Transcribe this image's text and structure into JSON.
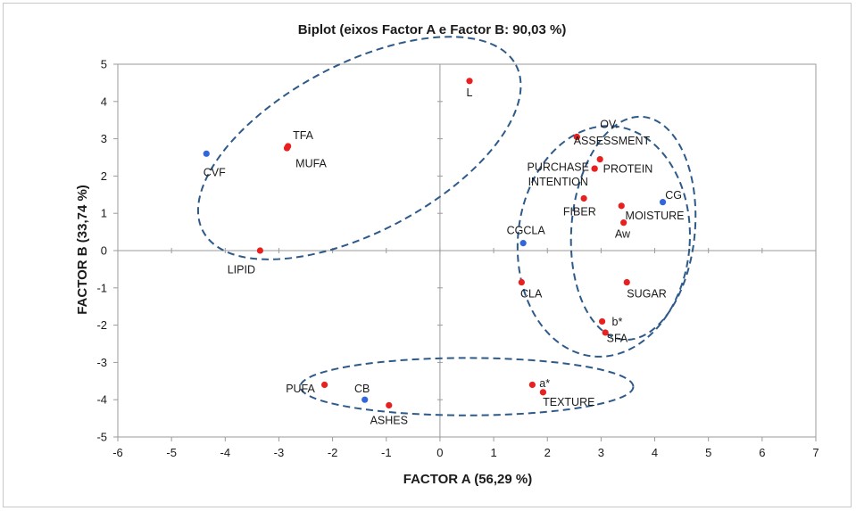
{
  "chart_data": {
    "type": "scatter",
    "title": "Biplot (eixos Factor A e Factor B: 90,03 %)",
    "xlabel": "FACTOR A (56,29 %)",
    "ylabel": "FACTOR B (33,74 %)",
    "xlim": [
      -6,
      7
    ],
    "ylim": [
      -5,
      5
    ],
    "xticks": [
      "-6",
      "-5",
      "-4",
      "-3",
      "-2",
      "-1",
      "0",
      "1",
      "2",
      "3",
      "4",
      "5",
      "6",
      "7"
    ],
    "yticks": [
      "5",
      "4",
      "3",
      "2",
      "1",
      "0",
      "-1",
      "-2",
      "-3",
      "-4",
      "-5"
    ],
    "grid": false,
    "colors": {
      "variable": "#e8201f",
      "observation": "#3366dd",
      "ellipse": "#2e5a8a",
      "axis": "#9a9a9a"
    },
    "points": [
      {
        "label": "L",
        "x": 0.55,
        "y": 4.55,
        "kind": "variable",
        "lx": 0.55,
        "ly": 4.25
      },
      {
        "label": "TFA",
        "x": -2.83,
        "y": 2.8,
        "kind": "variable",
        "lx": -2.55,
        "ly": 3.1
      },
      {
        "label": "MUFA",
        "x": -2.85,
        "y": 2.75,
        "kind": "variable",
        "lx": -2.4,
        "ly": 2.35
      },
      {
        "label": "CVF",
        "x": -4.35,
        "y": 2.6,
        "kind": "observation",
        "lx": -4.2,
        "ly": 2.1
      },
      {
        "label": "LIPID",
        "x": -3.35,
        "y": 0.0,
        "kind": "variable",
        "lx": -3.7,
        "ly": -0.5
      },
      {
        "label": "OV.",
        "x": 2.55,
        "y": 3.05,
        "kind": "variable",
        "lx": 3.15,
        "ly": 3.4
      },
      {
        "label": "ASSESSMENT",
        "x": 2.55,
        "y": 3.05,
        "kind": "variable",
        "lx": 3.2,
        "ly": 2.95
      },
      {
        "label": "PROTEIN",
        "x": 2.98,
        "y": 2.45,
        "kind": "variable",
        "lx": 3.5,
        "ly": 2.2
      },
      {
        "label": "PURCHASE",
        "x": 2.88,
        "y": 2.2,
        "kind": "variable",
        "lx": 2.2,
        "ly": 2.25
      },
      {
        "label": "INTENTION",
        "x": 2.88,
        "y": 2.2,
        "kind": "variable",
        "lx": 2.2,
        "ly": 1.85
      },
      {
        "label": "FIBER",
        "x": 2.68,
        "y": 1.4,
        "kind": "variable",
        "lx": 2.6,
        "ly": 1.05
      },
      {
        "label": "CG",
        "x": 4.15,
        "y": 1.3,
        "kind": "observation",
        "lx": 4.35,
        "ly": 1.5
      },
      {
        "label": "MOISTURE",
        "x": 3.38,
        "y": 1.2,
        "kind": "variable",
        "lx": 4.0,
        "ly": 0.95
      },
      {
        "label": "Aw",
        "x": 3.42,
        "y": 0.75,
        "kind": "variable",
        "lx": 3.4,
        "ly": 0.45
      },
      {
        "label": "CGCLA",
        "x": 1.55,
        "y": 0.2,
        "kind": "observation",
        "lx": 1.6,
        "ly": 0.55
      },
      {
        "label": "CLA",
        "x": 1.52,
        "y": -0.85,
        "kind": "variable",
        "lx": 1.7,
        "ly": -1.15
      },
      {
        "label": "SUGAR",
        "x": 3.48,
        "y": -0.85,
        "kind": "variable",
        "lx": 3.85,
        "ly": -1.15
      },
      {
        "label": "b*",
        "x": 3.02,
        "y": -1.9,
        "kind": "variable",
        "lx": 3.3,
        "ly": -1.9
      },
      {
        "label": "SFA",
        "x": 3.08,
        "y": -2.2,
        "kind": "variable",
        "lx": 3.3,
        "ly": -2.35
      },
      {
        "label": "a*",
        "x": 1.72,
        "y": -3.6,
        "kind": "variable",
        "lx": 1.95,
        "ly": -3.55
      },
      {
        "label": "TEXTURE",
        "x": 1.92,
        "y": -3.8,
        "kind": "variable",
        "lx": 2.4,
        "ly": -4.05
      },
      {
        "label": "PUFA",
        "x": -2.15,
        "y": -3.6,
        "kind": "variable",
        "lx": -2.6,
        "ly": -3.7
      },
      {
        "label": "CB",
        "x": -1.4,
        "y": -4.0,
        "kind": "observation",
        "lx": -1.45,
        "ly": -3.7
      },
      {
        "label": "ASHES",
        "x": -0.95,
        "y": -4.15,
        "kind": "variable",
        "lx": -0.95,
        "ly": -4.55
      }
    ],
    "ellipses": [
      {
        "cx": -1.5,
        "cy": 2.75,
        "rx": 3.3,
        "ry": 2.25,
        "rotate": -28
      },
      {
        "cx": 3.05,
        "cy": 0.25,
        "rx": 1.6,
        "ry": 3.1,
        "rotate": 5
      },
      {
        "cx": 3.6,
        "cy": 0.6,
        "rx": 1.15,
        "ry": 3.0,
        "rotate": 5
      },
      {
        "cx": 0.5,
        "cy": -3.65,
        "rx": 3.1,
        "ry": 0.77,
        "rotate": 0
      }
    ]
  }
}
